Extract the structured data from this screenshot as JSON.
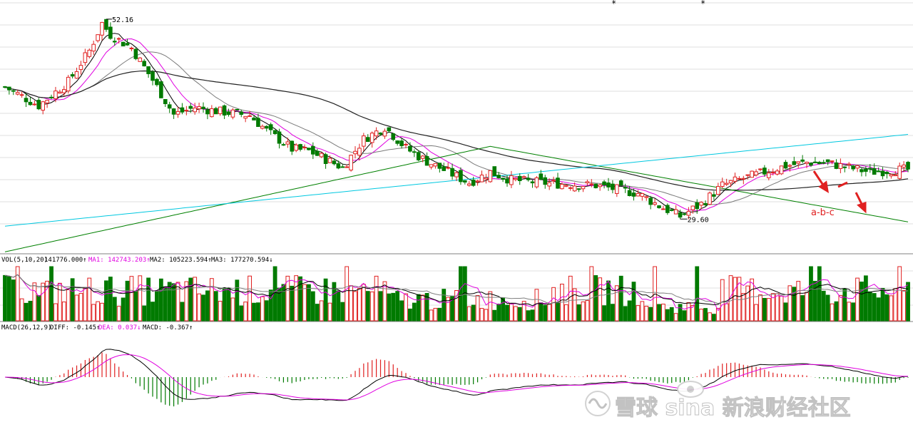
{
  "chart_data": [
    {
      "type": "candlestick",
      "panel": "price",
      "header_text": "",
      "moving_averages": [
        {
          "name": "MA5",
          "color": "#000000"
        },
        {
          "name": "MA10",
          "color": "#e000e0"
        },
        {
          "name": "MA20",
          "color": "#7a7a7a"
        },
        {
          "name": "MA60",
          "color": "#222222"
        },
        {
          "name": "MA120",
          "color": "#008000"
        },
        {
          "name": "MA250",
          "color": "#00c8e0"
        }
      ],
      "price_markers": {
        "high_label": "52.16",
        "low_label": "29.60"
      },
      "ylim": [
        26,
        54
      ],
      "annotation": "a-b-c",
      "bars": 215,
      "close_path": [
        [
          0,
          44.5
        ],
        [
          8,
          42.4
        ],
        [
          15,
          45.1
        ],
        [
          20,
          48.6
        ],
        [
          23,
          51.7
        ],
        [
          25,
          50.4
        ],
        [
          30,
          48.9
        ],
        [
          35,
          45.3
        ],
        [
          40,
          41.4
        ],
        [
          45,
          42.2
        ],
        [
          50,
          41.8
        ],
        [
          58,
          41.3
        ],
        [
          62,
          39.6
        ],
        [
          68,
          37.5
        ],
        [
          72,
          37.3
        ],
        [
          80,
          35.4
        ],
        [
          85,
          38.6
        ],
        [
          90,
          40.0
        ],
        [
          95,
          37.6
        ],
        [
          100,
          36.1
        ],
        [
          105,
          34.9
        ],
        [
          110,
          33.7
        ],
        [
          115,
          34.9
        ],
        [
          120,
          34.0
        ],
        [
          130,
          33.6
        ],
        [
          140,
          33.4
        ],
        [
          150,
          32.5
        ],
        [
          155,
          31.1
        ],
        [
          160,
          29.9
        ],
        [
          165,
          31.3
        ],
        [
          170,
          33.4
        ],
        [
          175,
          34.2
        ],
        [
          180,
          34.9
        ],
        [
          185,
          35.6
        ],
        [
          190,
          36.0
        ],
        [
          195,
          35.9
        ],
        [
          200,
          35.4
        ],
        [
          205,
          34.9
        ],
        [
          210,
          35.1
        ],
        [
          214,
          35.2
        ]
      ]
    },
    {
      "type": "bar",
      "panel": "volume",
      "header": [
        {
          "text": "VOL(5,10,20)",
          "color": "#000000"
        },
        {
          "text": "141776.000↑",
          "color": "#000000"
        },
        {
          "text": "MA1: 142743.203↑",
          "color": "#e000e0"
        },
        {
          "text": "MA2: 105223.594↑",
          "color": "#000000"
        },
        {
          "text": "MA3: 177270.594↓",
          "color": "#000000"
        }
      ]
    },
    {
      "type": "line",
      "panel": "macd",
      "header": [
        {
          "text": "MACD(26,12,9)",
          "color": "#000000"
        },
        {
          "text": "DIFF: -0.145↑",
          "color": "#000000"
        },
        {
          "text": "DEA: 0.037↓",
          "color": "#e000e0"
        },
        {
          "text": "MACD: -0.367↑",
          "color": "#000000"
        }
      ],
      "series": [
        {
          "name": "DIFF",
          "color": "#000000"
        },
        {
          "name": "DEA",
          "color": "#e000e0"
        }
      ]
    }
  ],
  "colors": {
    "up": "#e02020",
    "down": "#007a00",
    "grid": "#c0c0c0"
  },
  "watermark": {
    "text": "雪球  sina 新浪财经社区",
    "icons": [
      "snowball-logo",
      "sina-eye-logo"
    ]
  }
}
